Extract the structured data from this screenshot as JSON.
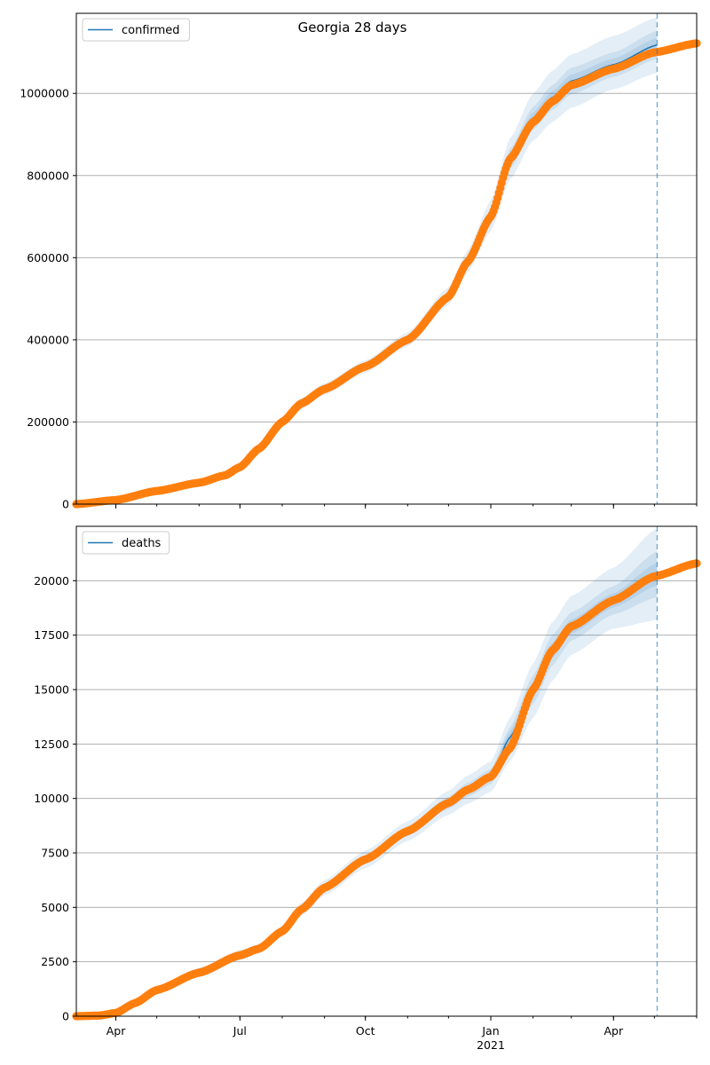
{
  "figure": {
    "title": "Georgia 28 days"
  },
  "colors": {
    "model_line": "#1f77b4",
    "observed_points": "#ff7f0e",
    "band": "#1f77b4",
    "grid": "#b0b0b0",
    "forecast_marker": "#1f77b4"
  },
  "x_axis": {
    "ticks": [
      {
        "date": "2020-04-01",
        "label": "Apr",
        "sublabel": ""
      },
      {
        "date": "2020-07-01",
        "label": "Jul",
        "sublabel": ""
      },
      {
        "date": "2020-10-01",
        "label": "Oct",
        "sublabel": ""
      },
      {
        "date": "2021-01-01",
        "label": "Jan",
        "sublabel": "2021"
      },
      {
        "date": "2021-04-01",
        "label": "Apr",
        "sublabel": ""
      }
    ],
    "range": [
      "2020-03-03",
      "2021-06-01"
    ]
  },
  "chart_data": [
    {
      "type": "line",
      "legend": "confirmed",
      "legend_position": "upper-left",
      "grid": "horizontal",
      "ylim": [
        0,
        1195000
      ],
      "yticks": [
        0,
        200000,
        400000,
        600000,
        800000,
        1000000
      ],
      "ytick_labels": [
        "0",
        "200000",
        "400000",
        "600000",
        "800000",
        "1000000"
      ],
      "forecast_start": "2021-05-03",
      "model_series": {
        "name": "confirmed",
        "x": [
          "2020-03-03",
          "2020-04-01",
          "2020-05-01",
          "2020-06-01",
          "2020-06-20",
          "2020-07-01",
          "2020-07-15",
          "2020-08-01",
          "2020-08-15",
          "2020-09-01",
          "2020-10-01",
          "2020-11-01",
          "2020-12-01",
          "2020-12-15",
          "2021-01-01",
          "2021-01-15",
          "2021-02-01",
          "2021-02-15",
          "2021-03-01",
          "2021-04-01",
          "2021-05-03"
        ],
        "y": [
          0,
          10000,
          32000,
          52000,
          70000,
          90000,
          135000,
          200000,
          245000,
          280000,
          335000,
          400000,
          505000,
          590000,
          700000,
          840000,
          940000,
          990000,
          1030000,
          1070000,
          1118000
        ]
      },
      "observed_series": {
        "x": [
          "2020-03-03",
          "2020-04-01",
          "2020-05-01",
          "2020-06-01",
          "2020-06-20",
          "2020-07-01",
          "2020-07-15",
          "2020-08-01",
          "2020-08-15",
          "2020-09-01",
          "2020-10-01",
          "2020-11-01",
          "2020-12-01",
          "2020-12-15",
          "2021-01-01",
          "2021-01-15",
          "2021-02-01",
          "2021-02-15",
          "2021-03-01",
          "2021-04-01",
          "2021-05-01",
          "2021-06-01"
        ],
        "y": [
          0,
          10000,
          32000,
          52000,
          70000,
          90000,
          135000,
          200000,
          245000,
          280000,
          335000,
          400000,
          505000,
          590000,
          700000,
          840000,
          930000,
          980000,
          1020000,
          1060000,
          1100000,
          1122000
        ]
      },
      "bands": [
        {
          "lower": [
            0,
            9000,
            30000,
            49000,
            66000,
            85000,
            127000,
            188000,
            232000,
            266000,
            320000,
            384000,
            485000,
            565000,
            665000,
            790000,
            885000,
            930000,
            965000,
            1010000,
            1050000
          ],
          "upper": [
            0,
            11000,
            34000,
            55000,
            74000,
            95000,
            143000,
            212000,
            258000,
            294000,
            350000,
            418000,
            528000,
            618000,
            740000,
            890000,
            1000000,
            1055000,
            1095000,
            1140000,
            1185000
          ]
        },
        {
          "lower": [
            0,
            9500,
            31000,
            50500,
            68000,
            87500,
            131000,
            194000,
            238500,
            273000,
            327500,
            392000,
            495000,
            577500,
            682500,
            815000,
            912500,
            960000,
            997500,
            1040000,
            1084000
          ],
          "upper": [
            0,
            10500,
            33000,
            53500,
            72000,
            92500,
            139000,
            206000,
            251500,
            287000,
            342500,
            408000,
            515000,
            602500,
            717500,
            865000,
            967500,
            1020000,
            1062500,
            1100000,
            1152000
          ]
        },
        {
          "lower": [
            0,
            9750,
            31500,
            51200,
            69000,
            88700,
            133000,
            197000,
            241700,
            276500,
            331200,
            396000,
            500000,
            583700,
            691200,
            827500,
            926200,
            975000,
            1013700,
            1055000,
            1101000
          ],
          "upper": [
            0,
            10250,
            32500,
            52800,
            71000,
            91300,
            137000,
            203000,
            248300,
            283500,
            338800,
            404000,
            510000,
            596300,
            708800,
            852500,
            953800,
            1005000,
            1046300,
            1085000,
            1135000
          ]
        }
      ]
    },
    {
      "type": "line",
      "legend": "deaths",
      "legend_position": "upper-left",
      "grid": "horizontal",
      "ylim": [
        0,
        22500
      ],
      "yticks": [
        0,
        2500,
        5000,
        7500,
        10000,
        12500,
        15000,
        17500,
        20000
      ],
      "ytick_labels": [
        "0",
        "2500",
        "5000",
        "7500",
        "10000",
        "12500",
        "15000",
        "17500",
        "20000"
      ],
      "forecast_start": "2021-05-03",
      "model_series": {
        "name": "deaths",
        "x": [
          "2020-03-03",
          "2020-03-20",
          "2020-04-01",
          "2020-04-15",
          "2020-05-01",
          "2020-06-01",
          "2020-07-01",
          "2020-07-15",
          "2020-08-01",
          "2020-08-15",
          "2020-09-01",
          "2020-10-01",
          "2020-11-01",
          "2020-12-01",
          "2020-12-15",
          "2021-01-01",
          "2021-01-15",
          "2021-02-01",
          "2021-02-15",
          "2021-03-01",
          "2021-04-01",
          "2021-05-03"
        ],
        "y": [
          0,
          30,
          150,
          600,
          1200,
          2000,
          2800,
          3100,
          3900,
          4900,
          5900,
          7200,
          8500,
          9800,
          10400,
          11000,
          12800,
          15000,
          16800,
          17900,
          19100,
          20300
        ]
      },
      "observed_series": {
        "x": [
          "2020-03-03",
          "2020-03-20",
          "2020-04-01",
          "2020-04-15",
          "2020-05-01",
          "2020-06-01",
          "2020-07-01",
          "2020-07-15",
          "2020-08-01",
          "2020-08-15",
          "2020-09-01",
          "2020-10-01",
          "2020-11-01",
          "2020-12-01",
          "2020-12-15",
          "2021-01-01",
          "2021-01-15",
          "2021-02-01",
          "2021-02-15",
          "2021-03-01",
          "2021-04-01",
          "2021-05-01",
          "2021-06-01"
        ],
        "y": [
          0,
          30,
          150,
          600,
          1200,
          2000,
          2800,
          3100,
          3900,
          4900,
          5900,
          7200,
          8500,
          9800,
          10400,
          11000,
          12300,
          15000,
          16800,
          17900,
          19100,
          20200,
          20800
        ]
      },
      "bands": [
        {
          "lower": [
            0,
            25,
            130,
            520,
            1050,
            1780,
            2560,
            2880,
            3650,
            4600,
            5550,
            6800,
            8050,
            9250,
            9750,
            10300,
            11700,
            13700,
            15400,
            16600,
            17800,
            18200
          ],
          "upper": [
            0,
            35,
            170,
            680,
            1350,
            2220,
            3040,
            3320,
            4150,
            5200,
            6250,
            7600,
            8950,
            10350,
            11050,
            11700,
            13700,
            16200,
            18100,
            19300,
            20600,
            22400
          ]
        },
        {
          "lower": [
            0,
            28,
            140,
            560,
            1125,
            1890,
            2680,
            2990,
            3775,
            4750,
            5725,
            7000,
            8275,
            9525,
            10075,
            10650,
            12250,
            14350,
            16100,
            17250,
            18450,
            19250
          ],
          "upper": [
            0,
            32,
            160,
            640,
            1275,
            2110,
            2920,
            3210,
            4025,
            5050,
            6075,
            7400,
            8725,
            10075,
            10725,
            11350,
            13250,
            15650,
            17500,
            18550,
            19750,
            21350
          ]
        },
        {
          "lower": [
            0,
            29,
            145,
            580,
            1160,
            1945,
            2740,
            3045,
            3840,
            4825,
            5810,
            7100,
            8390,
            9660,
            10240,
            10825,
            12525,
            14675,
            16450,
            17575,
            18775,
            19775
          ],
          "upper": [
            0,
            31,
            155,
            620,
            1240,
            2055,
            2860,
            3155,
            3960,
            4975,
            5990,
            7300,
            8610,
            9940,
            10560,
            11175,
            13075,
            15325,
            17150,
            18225,
            19425,
            20825
          ]
        }
      ]
    }
  ]
}
